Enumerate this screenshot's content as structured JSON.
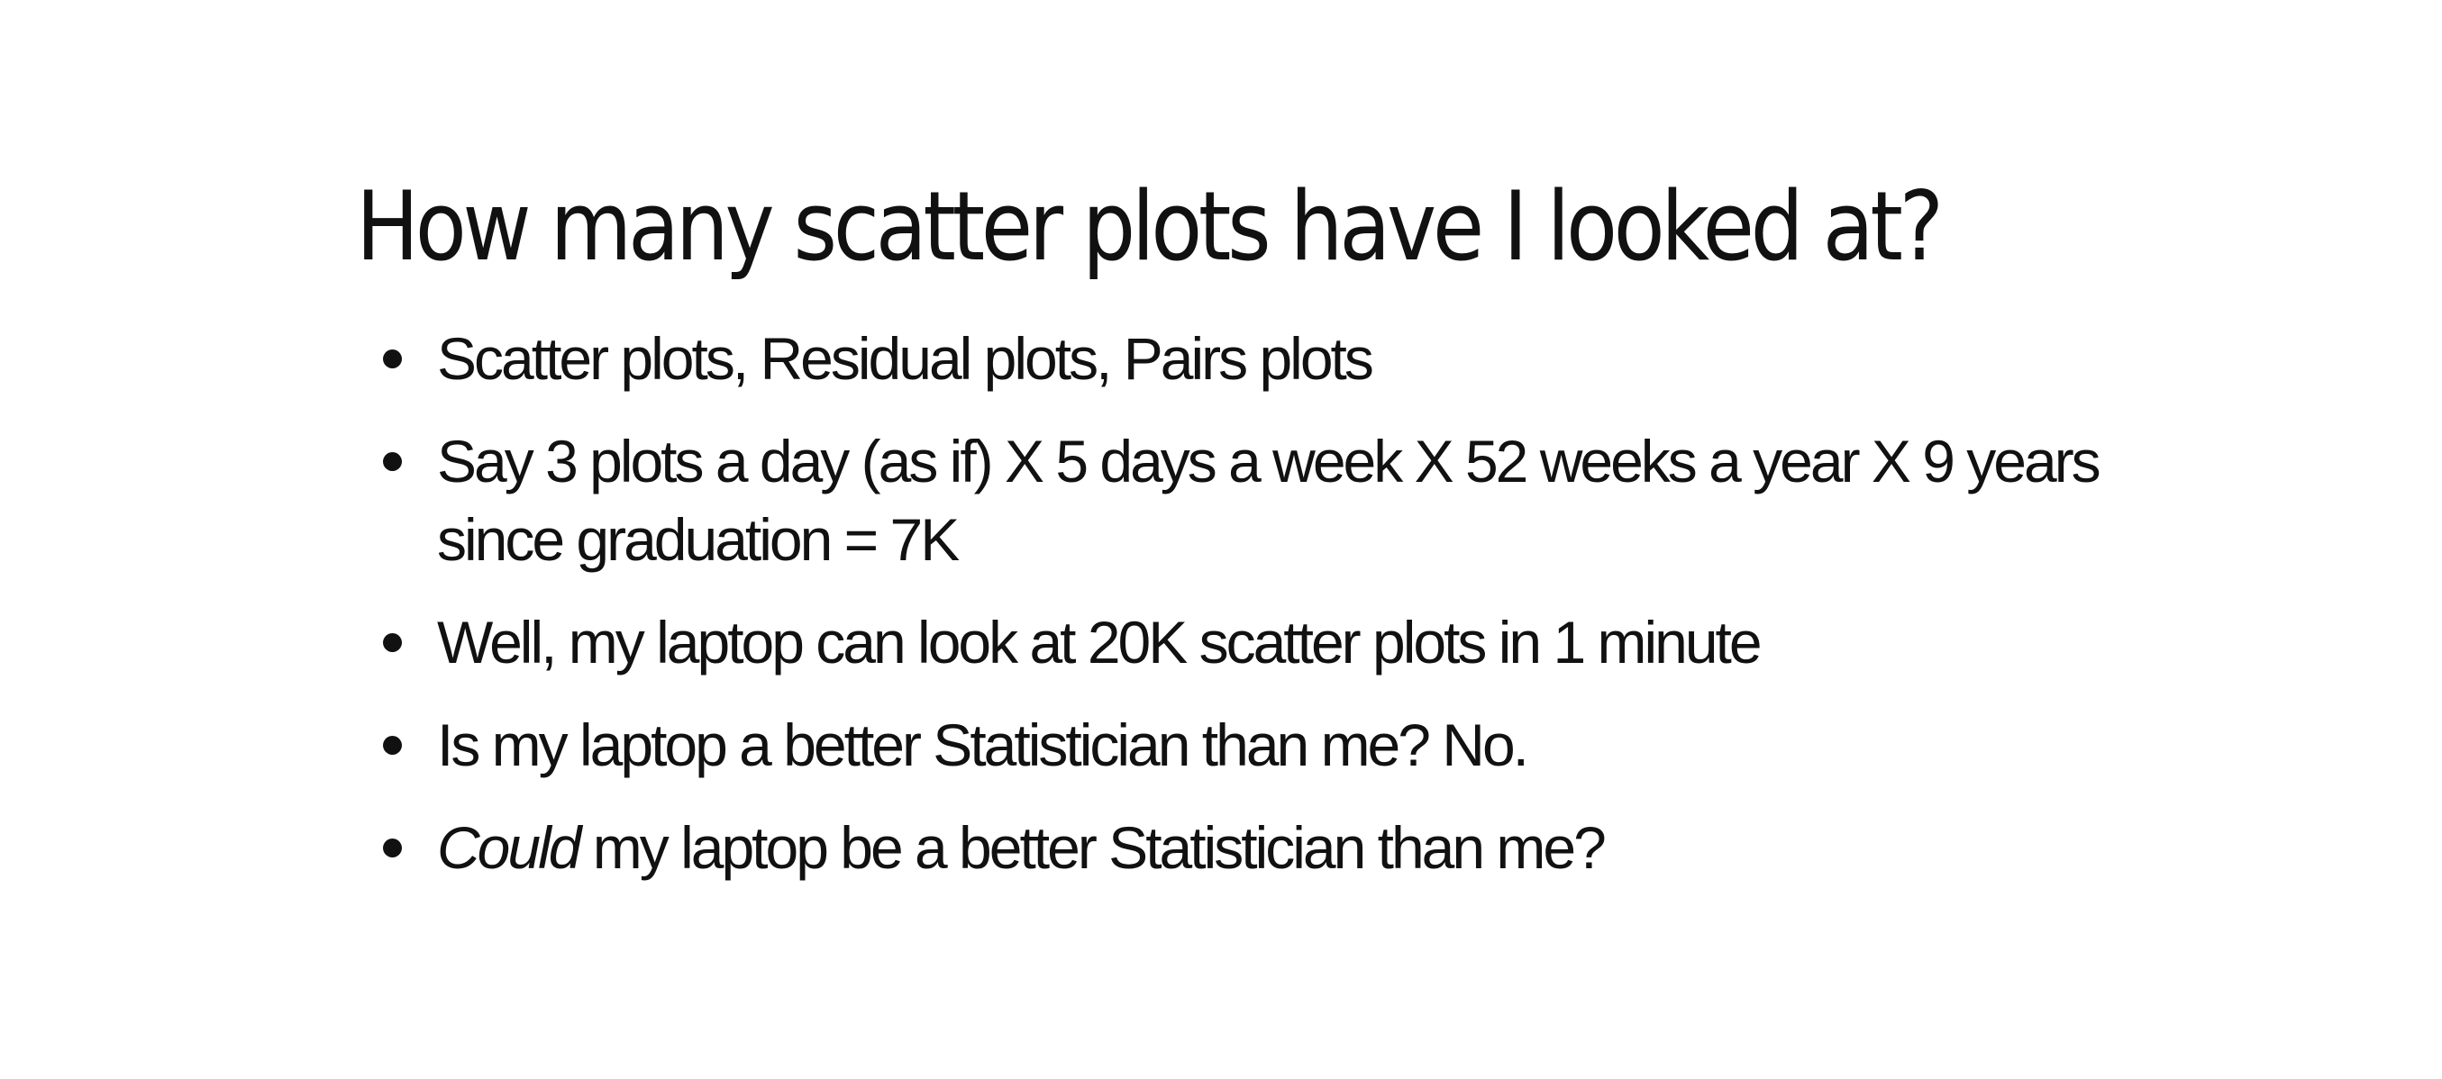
{
  "slide": {
    "title": "How many scatter plots have I looked at?",
    "bullets": [
      {
        "text": "Scatter plots, Residual plots, Pairs plots"
      },
      {
        "text": "Say 3 plots a day (as if) X 5 days a week X 52 weeks a year X 9 years since graduation = 7K"
      },
      {
        "text": "Well, my laptop can look at 20K scatter plots in 1 minute"
      },
      {
        "text": "Is my laptop a better Statistician than me? No."
      },
      {
        "emphasis": "Could",
        "rest": " my laptop be a better Statistician than me?"
      }
    ]
  }
}
